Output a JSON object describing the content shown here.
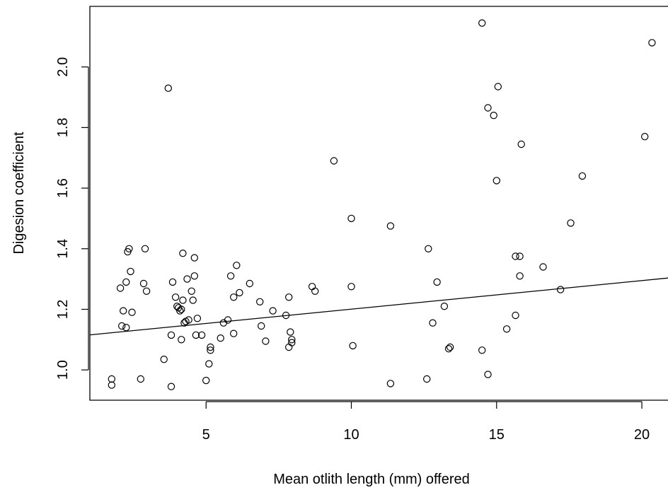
{
  "chart_data": {
    "type": "scatter",
    "title": "",
    "xlabel": "Mean otlith length (mm) offered",
    "ylabel": "Digesion coefficient",
    "xlim": [
      1,
      20.9
    ],
    "ylim": [
      0.9,
      2.2
    ],
    "xticks": [
      5,
      10,
      15,
      20
    ],
    "yticks": [
      1.0,
      1.2,
      1.4,
      1.6,
      1.8,
      2.0
    ],
    "xtick_labels": [
      "5",
      "10",
      "15",
      "20"
    ],
    "ytick_labels": [
      "1.0",
      "1.2",
      "1.4",
      "1.6",
      "1.8",
      "2.0"
    ],
    "grid": false,
    "marker": "open-circle",
    "points": [
      [
        1.75,
        0.97
      ],
      [
        1.75,
        0.95
      ],
      [
        2.05,
        1.27
      ],
      [
        2.15,
        1.195
      ],
      [
        2.1,
        1.145
      ],
      [
        2.25,
        1.14
      ],
      [
        2.25,
        1.29
      ],
      [
        2.3,
        1.39
      ],
      [
        2.35,
        1.4
      ],
      [
        2.4,
        1.325
      ],
      [
        2.45,
        1.19
      ],
      [
        2.75,
        0.97
      ],
      [
        2.85,
        1.285
      ],
      [
        2.9,
        1.4
      ],
      [
        2.95,
        1.26
      ],
      [
        3.55,
        1.035
      ],
      [
        3.7,
        1.93
      ],
      [
        3.8,
        1.115
      ],
      [
        3.8,
        0.945
      ],
      [
        3.85,
        1.29
      ],
      [
        3.95,
        1.24
      ],
      [
        4.0,
        1.21
      ],
      [
        4.05,
        1.205
      ],
      [
        4.1,
        1.195
      ],
      [
        4.15,
        1.2
      ],
      [
        4.15,
        1.1
      ],
      [
        4.2,
        1.385
      ],
      [
        4.2,
        1.23
      ],
      [
        4.25,
        1.155
      ],
      [
        4.3,
        1.16
      ],
      [
        4.35,
        1.3
      ],
      [
        4.4,
        1.165
      ],
      [
        4.5,
        1.26
      ],
      [
        4.55,
        1.23
      ],
      [
        4.6,
        1.37
      ],
      [
        4.6,
        1.31
      ],
      [
        4.65,
        1.115
      ],
      [
        4.7,
        1.17
      ],
      [
        4.85,
        1.115
      ],
      [
        5.0,
        0.965
      ],
      [
        5.1,
        1.02
      ],
      [
        5.15,
        1.075
      ],
      [
        5.15,
        1.065
      ],
      [
        5.5,
        1.105
      ],
      [
        5.6,
        1.155
      ],
      [
        5.75,
        1.165
      ],
      [
        5.85,
        1.31
      ],
      [
        5.95,
        1.24
      ],
      [
        5.95,
        1.12
      ],
      [
        6.05,
        1.345
      ],
      [
        6.15,
        1.255
      ],
      [
        6.5,
        1.285
      ],
      [
        6.85,
        1.225
      ],
      [
        6.9,
        1.145
      ],
      [
        7.05,
        1.095
      ],
      [
        7.3,
        1.195
      ],
      [
        7.75,
        1.18
      ],
      [
        7.85,
        1.24
      ],
      [
        7.85,
        1.075
      ],
      [
        7.9,
        1.125
      ],
      [
        7.95,
        1.09
      ],
      [
        7.95,
        1.1
      ],
      [
        8.65,
        1.275
      ],
      [
        8.75,
        1.26
      ],
      [
        9.4,
        1.69
      ],
      [
        10.0,
        1.5
      ],
      [
        10.0,
        1.275
      ],
      [
        10.05,
        1.08
      ],
      [
        11.35,
        1.475
      ],
      [
        11.35,
        0.955
      ],
      [
        12.6,
        0.97
      ],
      [
        12.65,
        1.4
      ],
      [
        12.8,
        1.155
      ],
      [
        12.95,
        1.29
      ],
      [
        13.2,
        1.21
      ],
      [
        13.35,
        1.07
      ],
      [
        13.4,
        1.075
      ],
      [
        14.5,
        2.145
      ],
      [
        14.5,
        1.065
      ],
      [
        14.7,
        1.865
      ],
      [
        14.7,
        0.985
      ],
      [
        14.9,
        1.84
      ],
      [
        15.0,
        1.625
      ],
      [
        15.05,
        1.935
      ],
      [
        15.35,
        1.135
      ],
      [
        15.65,
        1.375
      ],
      [
        15.65,
        1.18
      ],
      [
        15.8,
        1.375
      ],
      [
        15.8,
        1.31
      ],
      [
        15.85,
        1.745
      ],
      [
        16.6,
        1.34
      ],
      [
        17.2,
        1.265
      ],
      [
        17.55,
        1.485
      ],
      [
        17.95,
        1.64
      ],
      [
        20.1,
        1.77
      ],
      [
        20.35,
        2.08
      ]
    ],
    "fit_line": {
      "intercept": 1.1062,
      "slope": 0.00943
    }
  }
}
